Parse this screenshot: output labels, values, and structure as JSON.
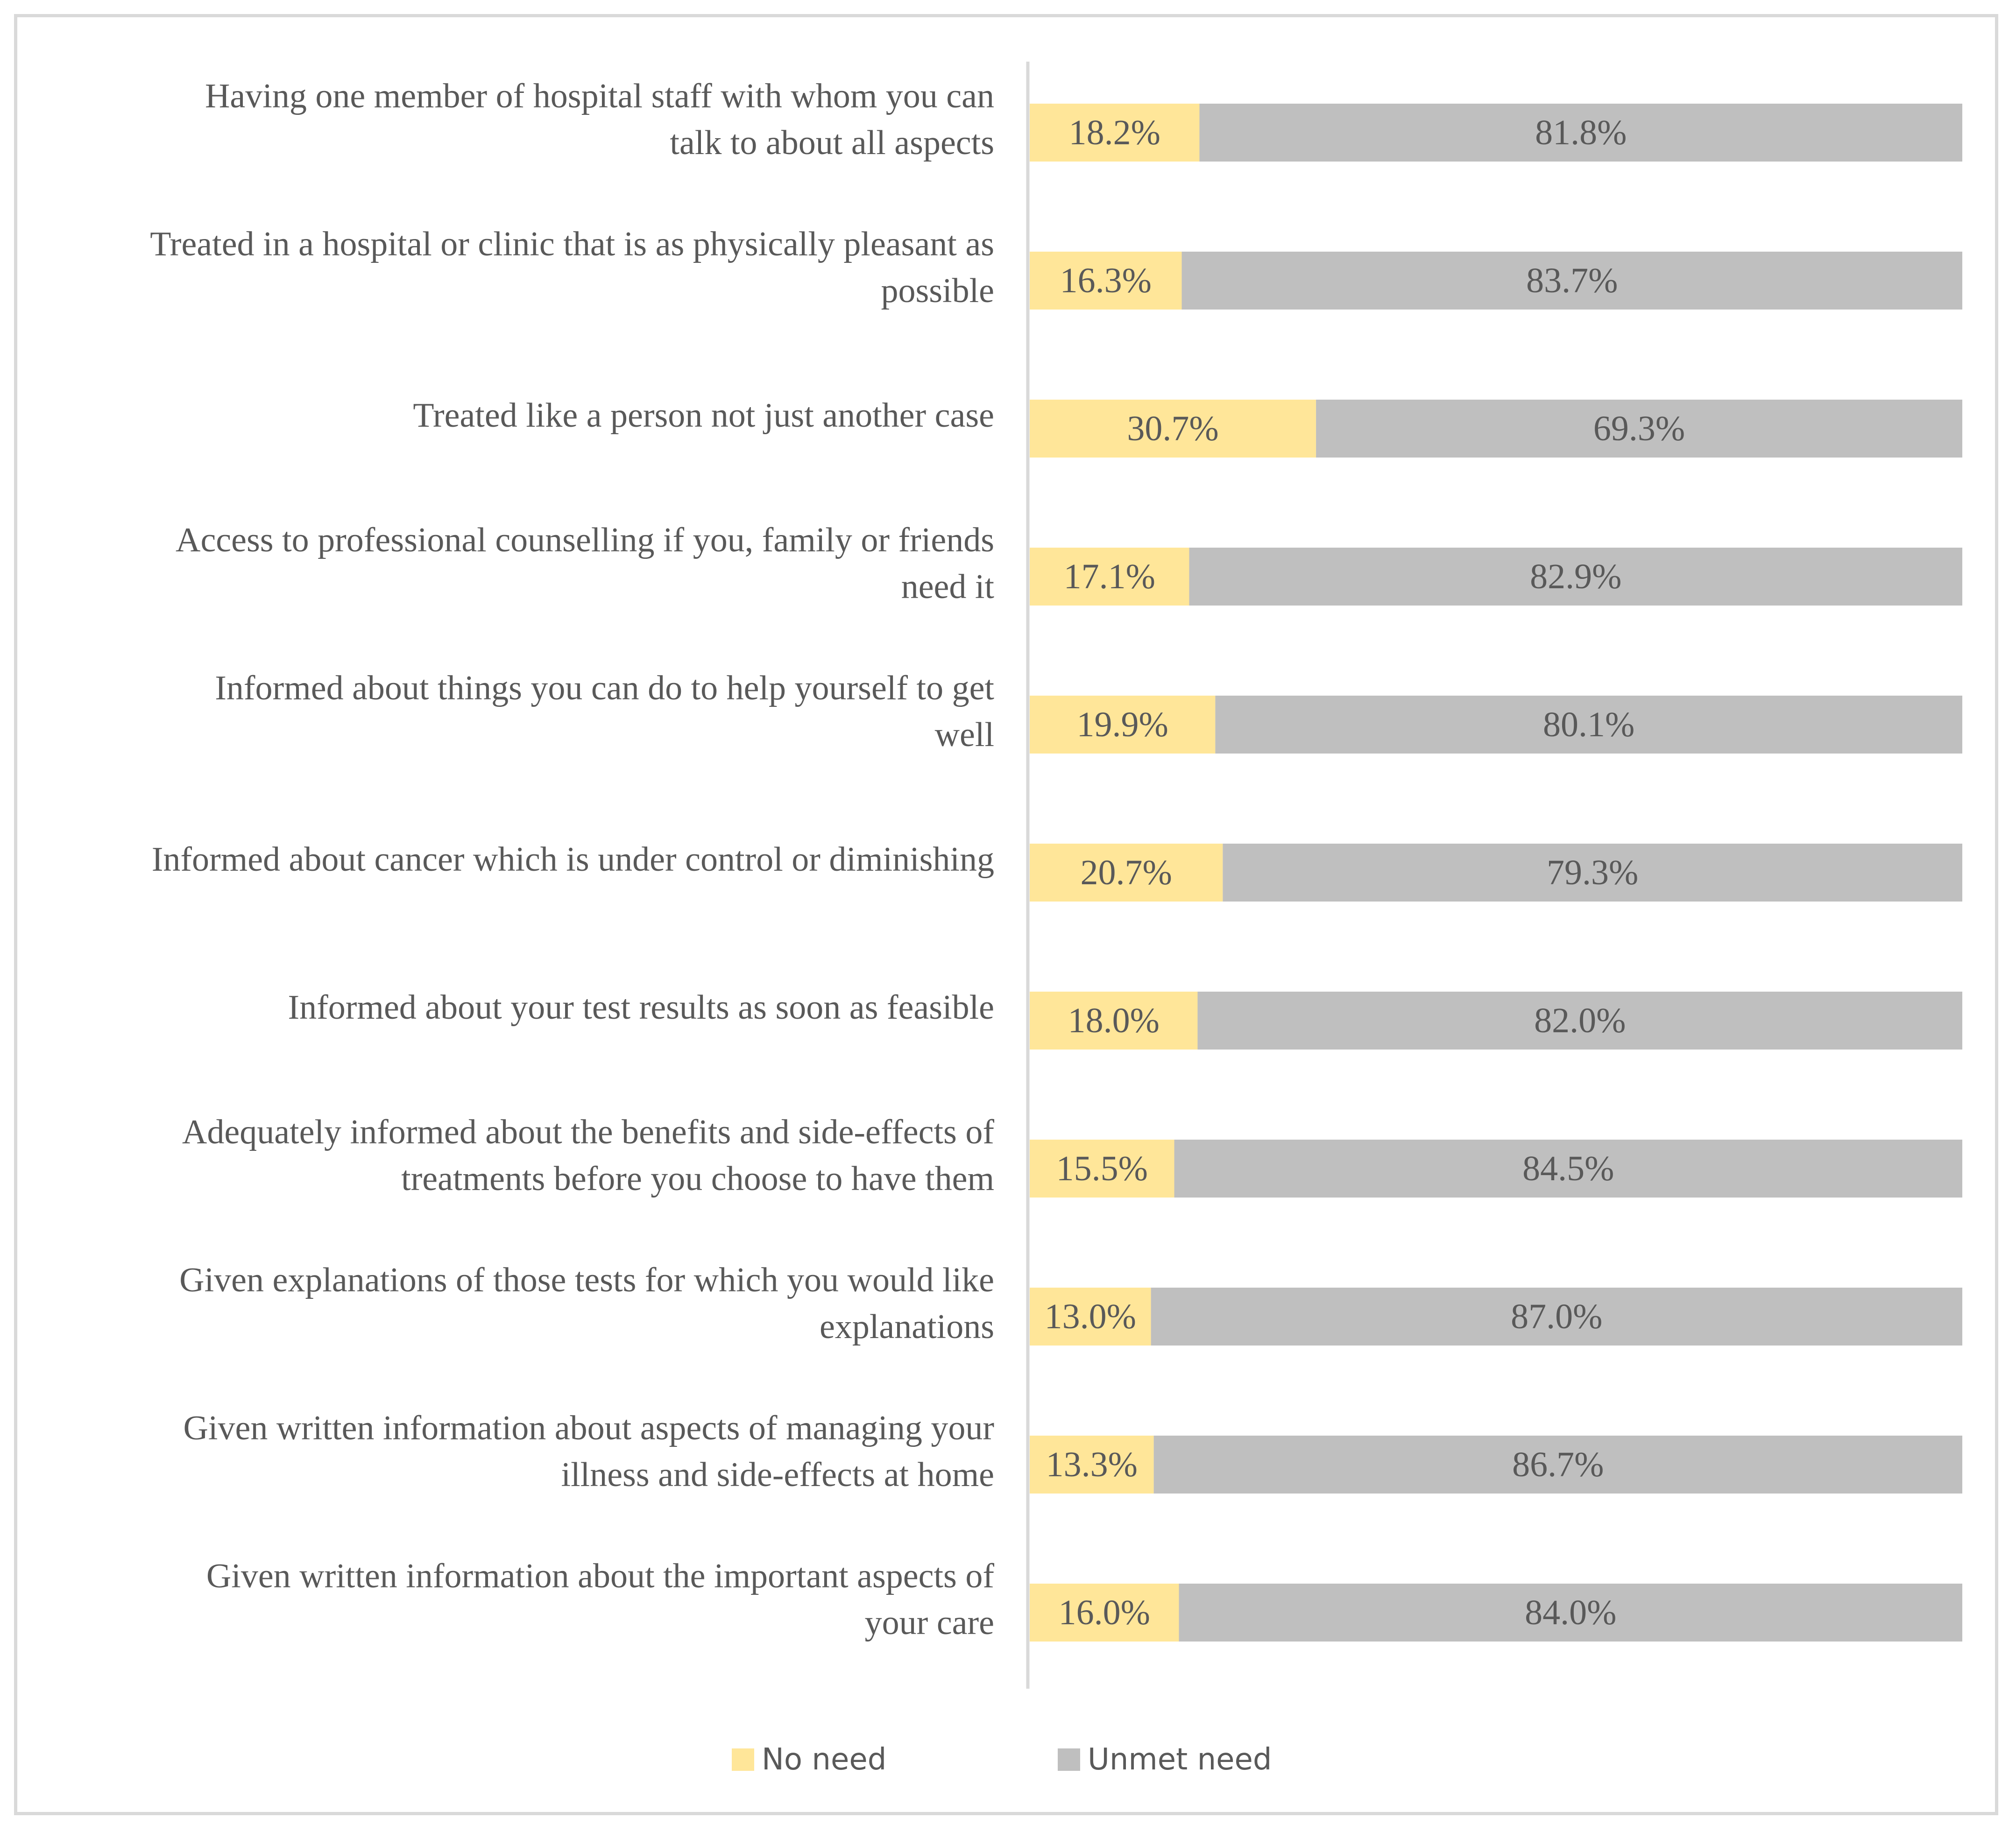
{
  "chart_data": {
    "type": "bar",
    "stacked": "percent",
    "orientation": "horizontal",
    "title": "",
    "xlabel": "",
    "ylabel": "",
    "xlim": [
      0,
      100
    ],
    "grid": false,
    "legend_position": "bottom",
    "categories": [
      [
        "Having one member of hospital staff with whom you can",
        "talk to about all aspects"
      ],
      [
        "Treated in a hospital or clinic that is as physically pleasant as",
        "possible"
      ],
      [
        "Treated like a person not just another case"
      ],
      [
        "Access to professional counselling  if you, family or friends",
        "need it"
      ],
      [
        "Informed about things you can do to help yourself to get",
        "well"
      ],
      [
        "Informed about cancer which is under control or diminishing"
      ],
      [
        "Informed about your test results as soon as feasible"
      ],
      [
        "Adequately informed about the benefits and side-effects of",
        "treatments before you choose to have them"
      ],
      [
        "Given explanations of those tests for which you would like",
        "explanations"
      ],
      [
        "Given written information about aspects of managing your",
        "illness and side-effects at home"
      ],
      [
        "Given written information about the important aspects of",
        "your care"
      ]
    ],
    "series": [
      {
        "name": "No need",
        "color": "#ffe699",
        "values": [
          18.2,
          16.3,
          30.7,
          17.1,
          19.9,
          20.7,
          18.0,
          15.5,
          13.0,
          13.3,
          16.0
        ],
        "labels": [
          "18.2%",
          "16.3%",
          "30.7%",
          "17.1%",
          "19.9%",
          "20.7%",
          "18.0%",
          "15.5%",
          "13.0%",
          "13.3%",
          "16.0%"
        ]
      },
      {
        "name": "Unmet need",
        "color": "#bfbfbf",
        "values": [
          81.8,
          83.7,
          69.3,
          82.9,
          80.1,
          79.3,
          82.0,
          84.5,
          87.0,
          86.7,
          84.0
        ],
        "labels": [
          "81.8%",
          "83.7%",
          "69.3%",
          "82.9%",
          "80.1%",
          "79.3%",
          "82.0%",
          "84.5%",
          "87.0%",
          "86.7%",
          "84.0%"
        ]
      }
    ],
    "axis_color": "#d9d9d9"
  }
}
